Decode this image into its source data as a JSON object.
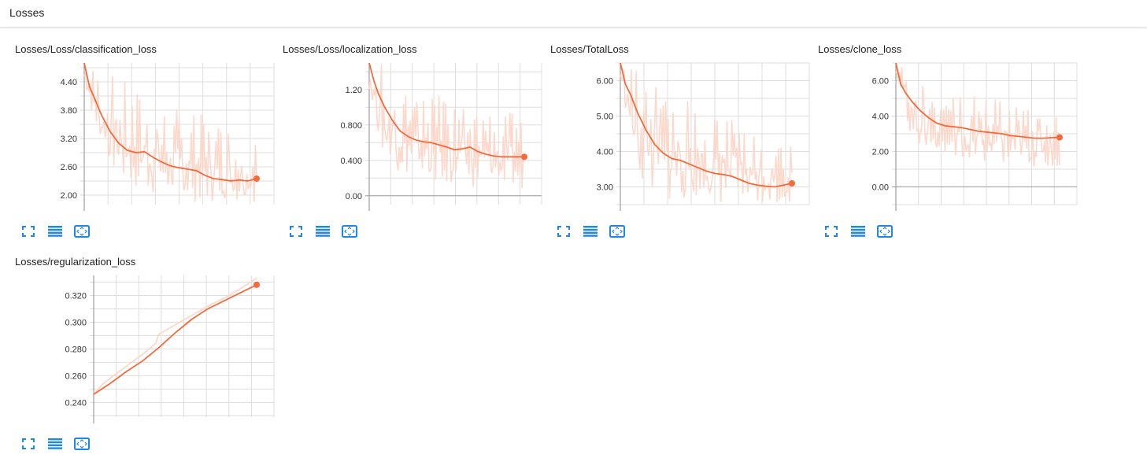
{
  "section": {
    "title": "Losses"
  },
  "colors": {
    "smoothed": "#f26b3a",
    "raw": "#fcd5c6",
    "grid": "#dddddd",
    "axis": "#9e9e9e",
    "button": "#1e88e5"
  },
  "buttons": [
    {
      "name": "expand-icon",
      "title": "Toggle expanded view"
    },
    {
      "name": "list-icon",
      "title": "Toggle y-axis log scale"
    },
    {
      "name": "fit-domain-icon",
      "title": "Fit domain to data"
    }
  ],
  "chart_data": [
    {
      "type": "line",
      "title": "Losses/Loss/classification_loss",
      "ylim": [
        1.8,
        4.8
      ],
      "yticks": [
        2.0,
        2.6,
        3.2,
        3.8,
        4.4
      ],
      "ytick_labels": [
        "2.00",
        "2.60",
        "3.20",
        "3.80",
        "4.40"
      ],
      "series": [
        {
          "name": "smoothed",
          "x": [
            0,
            0.03,
            0.06,
            0.1,
            0.15,
            0.2,
            0.25,
            0.3,
            0.35,
            0.4,
            0.45,
            0.5,
            0.55,
            0.6,
            0.65,
            0.7,
            0.75,
            0.8,
            0.85,
            0.9,
            0.95,
            1.0
          ],
          "values": [
            4.8,
            4.3,
            4.05,
            3.7,
            3.35,
            3.1,
            2.95,
            2.9,
            2.92,
            2.8,
            2.7,
            2.62,
            2.58,
            2.55,
            2.52,
            2.42,
            2.35,
            2.33,
            2.3,
            2.32,
            2.3,
            2.35
          ]
        },
        {
          "name": "raw_upper",
          "x": [
            0,
            0.1,
            0.2,
            0.3,
            0.4,
            0.5,
            0.6,
            0.7,
            0.8,
            0.9,
            1.0
          ],
          "values": [
            4.8,
            4.7,
            4.5,
            4.3,
            4.1,
            3.9,
            3.8,
            3.7,
            3.6,
            3.5,
            3.4
          ]
        },
        {
          "name": "raw_lower",
          "x": [
            0,
            0.1,
            0.2,
            0.3,
            0.4,
            0.5,
            0.6,
            0.7,
            0.8,
            0.9,
            1.0
          ],
          "values": [
            4.4,
            2.9,
            2.3,
            2.1,
            2.0,
            1.9,
            1.85,
            1.85,
            1.85,
            1.85,
            1.85
          ]
        }
      ]
    },
    {
      "type": "line",
      "title": "Losses/Loss/localization_loss",
      "ylim": [
        -0.1,
        1.5
      ],
      "yticks": [
        0.0,
        0.4,
        0.8,
        1.2
      ],
      "ytick_labels": [
        "0.00",
        "0.400",
        "0.800",
        "1.20"
      ],
      "series": [
        {
          "name": "smoothed",
          "x": [
            0,
            0.03,
            0.06,
            0.1,
            0.15,
            0.2,
            0.25,
            0.3,
            0.35,
            0.4,
            0.5,
            0.55,
            0.6,
            0.65,
            0.7,
            0.75,
            0.8,
            0.85,
            0.9,
            0.95,
            1.0
          ],
          "values": [
            1.5,
            1.3,
            1.15,
            1.0,
            0.85,
            0.73,
            0.67,
            0.63,
            0.61,
            0.6,
            0.55,
            0.52,
            0.53,
            0.55,
            0.5,
            0.47,
            0.45,
            0.44,
            0.44,
            0.44,
            0.44
          ]
        },
        {
          "name": "raw_upper",
          "x": [
            0,
            0.1,
            0.2,
            0.3,
            0.4,
            0.5,
            0.6,
            0.7,
            0.8,
            0.9,
            1.0
          ],
          "values": [
            1.5,
            1.5,
            1.3,
            1.2,
            1.15,
            1.1,
            1.05,
            1.0,
            1.0,
            0.95,
            0.9
          ]
        },
        {
          "name": "raw_lower",
          "x": [
            0,
            0.1,
            0.2,
            0.3,
            0.4,
            0.5,
            0.6,
            0.7,
            0.8,
            0.9,
            1.0
          ],
          "values": [
            1.2,
            0.35,
            0.25,
            0.2,
            0.15,
            0.12,
            0.1,
            0.1,
            0.08,
            0.08,
            0.08
          ]
        }
      ]
    },
    {
      "type": "line",
      "title": "Losses/TotalLoss",
      "ylim": [
        2.5,
        6.5
      ],
      "yticks": [
        3.0,
        4.0,
        5.0,
        6.0
      ],
      "ytick_labels": [
        "3.00",
        "4.00",
        "5.00",
        "6.00"
      ],
      "series": [
        {
          "name": "smoothed",
          "x": [
            0,
            0.03,
            0.06,
            0.1,
            0.15,
            0.2,
            0.25,
            0.3,
            0.35,
            0.4,
            0.45,
            0.5,
            0.55,
            0.6,
            0.65,
            0.7,
            0.75,
            0.8,
            0.85,
            0.9,
            0.95,
            1.0
          ],
          "values": [
            6.5,
            5.9,
            5.6,
            5.1,
            4.6,
            4.2,
            3.95,
            3.8,
            3.75,
            3.65,
            3.55,
            3.45,
            3.38,
            3.35,
            3.3,
            3.2,
            3.1,
            3.05,
            3.02,
            3.0,
            3.05,
            3.1
          ]
        },
        {
          "name": "raw_upper",
          "x": [
            0,
            0.1,
            0.2,
            0.3,
            0.4,
            0.5,
            0.6,
            0.7,
            0.8,
            0.9,
            1.0
          ],
          "values": [
            6.5,
            6.4,
            6.2,
            5.8,
            5.5,
            5.2,
            5.0,
            4.8,
            4.6,
            4.4,
            4.2
          ]
        },
        {
          "name": "raw_lower",
          "x": [
            0,
            0.1,
            0.2,
            0.3,
            0.4,
            0.5,
            0.6,
            0.7,
            0.8,
            0.9,
            1.0
          ],
          "values": [
            6.0,
            3.2,
            2.7,
            2.55,
            2.55,
            2.55,
            2.55,
            2.55,
            2.55,
            2.55,
            2.55
          ]
        }
      ]
    },
    {
      "type": "line",
      "title": "Losses/clone_loss",
      "ylim": [
        -1.0,
        7.0
      ],
      "yticks": [
        0.0,
        2.0,
        4.0,
        6.0
      ],
      "ytick_labels": [
        "0.00",
        "2.00",
        "4.00",
        "6.00"
      ],
      "series": [
        {
          "name": "smoothed",
          "x": [
            0,
            0.03,
            0.06,
            0.1,
            0.15,
            0.2,
            0.25,
            0.3,
            0.35,
            0.4,
            0.45,
            0.5,
            0.55,
            0.6,
            0.65,
            0.7,
            0.75,
            0.8,
            0.85,
            0.9,
            0.95,
            1.0
          ],
          "values": [
            7.0,
            5.8,
            5.3,
            4.8,
            4.3,
            3.9,
            3.6,
            3.45,
            3.4,
            3.35,
            3.25,
            3.15,
            3.1,
            3.05,
            3.0,
            2.9,
            2.85,
            2.8,
            2.75,
            2.75,
            2.78,
            2.8
          ]
        },
        {
          "name": "raw_upper",
          "x": [
            0,
            0.1,
            0.2,
            0.3,
            0.4,
            0.5,
            0.6,
            0.7,
            0.8,
            0.9,
            1.0
          ],
          "values": [
            7.0,
            6.5,
            6.2,
            5.8,
            5.4,
            5.2,
            5.0,
            4.8,
            4.6,
            4.5,
            4.4
          ]
        },
        {
          "name": "raw_lower",
          "x": [
            0,
            0.1,
            0.2,
            0.3,
            0.4,
            0.5,
            0.6,
            0.7,
            0.8,
            0.9,
            1.0
          ],
          "values": [
            6.5,
            2.5,
            1.8,
            1.5,
            1.3,
            1.2,
            1.2,
            1.1,
            1.1,
            1.1,
            1.1
          ]
        }
      ]
    },
    {
      "type": "line",
      "title": "Losses/regularization_loss",
      "ylim": [
        0.229,
        0.335
      ],
      "yticks": [
        0.24,
        0.26,
        0.28,
        0.3,
        0.32
      ],
      "ytick_labels": [
        "0.240",
        "0.260",
        "0.280",
        "0.300",
        "0.320"
      ],
      "series": [
        {
          "name": "smoothed",
          "x": [
            0,
            0.05,
            0.1,
            0.2,
            0.3,
            0.4,
            0.5,
            0.55,
            0.6,
            0.7,
            0.8,
            0.9,
            1.0
          ],
          "values": [
            0.246,
            0.25,
            0.254,
            0.263,
            0.271,
            0.281,
            0.292,
            0.297,
            0.302,
            0.31,
            0.316,
            0.322,
            0.328
          ]
        },
        {
          "name": "raw",
          "x": [
            0,
            0.05,
            0.1,
            0.2,
            0.3,
            0.38,
            0.4,
            0.5,
            0.6,
            0.7,
            0.8,
            0.9,
            1.0
          ],
          "values": [
            0.246,
            0.253,
            0.258,
            0.267,
            0.276,
            0.284,
            0.291,
            0.298,
            0.305,
            0.312,
            0.318,
            0.325,
            0.333
          ]
        }
      ]
    }
  ]
}
